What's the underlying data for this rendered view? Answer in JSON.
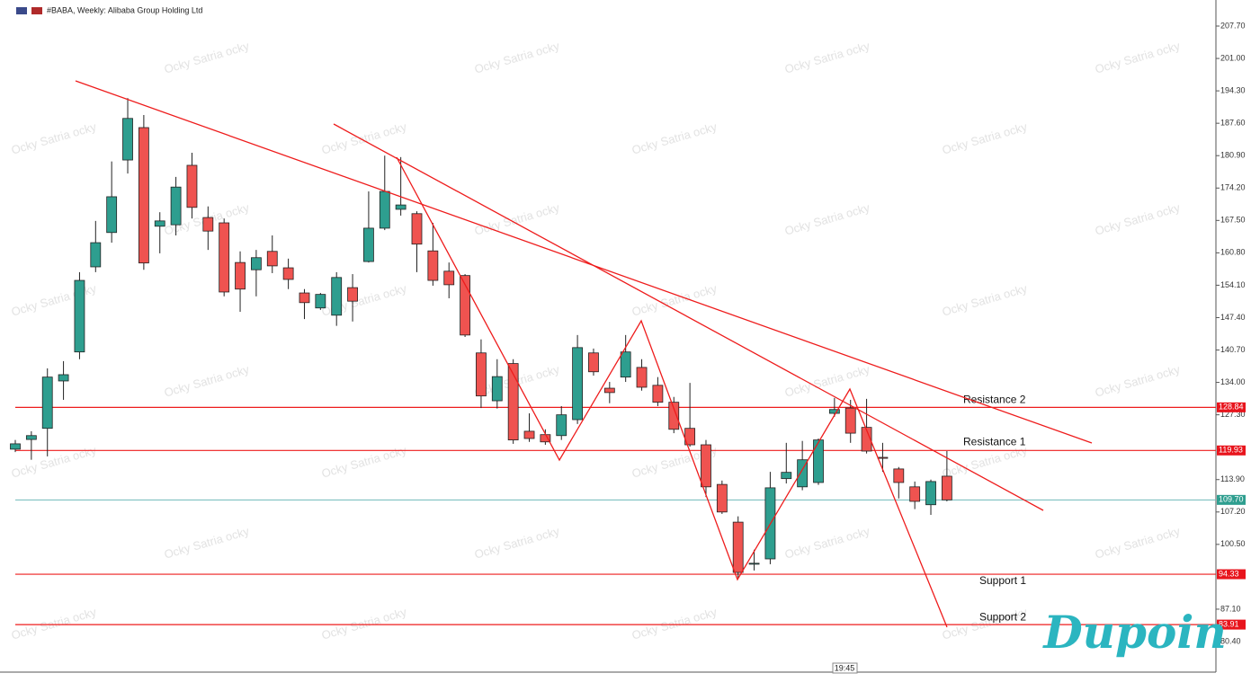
{
  "header": {
    "title": "#BABA, Weekly:  Alibaba Group Holding Ltd"
  },
  "watermark": "Ocky Satria ocky",
  "logo": "Dupoin",
  "time_label": "19:45",
  "chart_data": {
    "type": "candlestick",
    "up_color": "#2e9e8f",
    "down_color": "#ef5350",
    "ylim": [
      74.64,
      213.09
    ],
    "yticks": [
      {
        "value": 207.7,
        "label": "207.70"
      },
      {
        "value": 201,
        "label": "201.00"
      },
      {
        "value": 194.3,
        "label": "194.30"
      },
      {
        "value": 187.6,
        "label": "187.60"
      },
      {
        "value": 180.9,
        "label": "180.90"
      },
      {
        "value": 174.2,
        "label": "174.20"
      },
      {
        "value": 167.5,
        "label": "167.50"
      },
      {
        "value": 160.8,
        "label": "160.80"
      },
      {
        "value": 154.1,
        "label": "154.10"
      },
      {
        "value": 147.4,
        "label": "147.40"
      },
      {
        "value": 140.7,
        "label": "140.70"
      },
      {
        "value": 134,
        "label": "134.00"
      },
      {
        "value": 127.3,
        "label": "127.30"
      },
      {
        "value": 113.9,
        "label": "113.90"
      },
      {
        "value": 107.2,
        "label": "107.20"
      },
      {
        "value": 100.5,
        "label": "100.50"
      },
      {
        "value": 87.1,
        "label": "87.10"
      },
      {
        "value": 80.4,
        "label": "80.40"
      }
    ],
    "open": [
      120.19,
      122.2,
      124.5,
      134.3,
      140.3,
      157.9,
      165.0,
      180.0,
      186.7,
      166.3,
      166.6,
      178.9,
      168.1,
      167.0,
      158.8,
      157.3,
      161.1,
      157.7,
      152.5,
      149.4,
      147.9,
      153.6,
      159.0,
      165.9,
      169.8,
      168.9,
      161.2,
      157.0,
      156.1,
      140.1,
      130.2,
      137.9,
      123.9,
      123.2,
      123.0,
      126.3,
      140.1,
      132.8,
      135.1,
      137.1,
      133.4,
      129.9,
      124.5,
      121.1,
      112.9,
      105.1,
      96.4,
      97.5,
      114.1,
      112.4,
      113.3,
      127.6,
      128.7,
      124.7,
      118.5,
      116.1,
      112.4,
      108.7,
      114.6
    ],
    "high": [
      122.1,
      123.9,
      136.9,
      138.4,
      156.8,
      167.4,
      179.7,
      192.8,
      189.3,
      169.2,
      176.5,
      181.5,
      170.4,
      167.9,
      161.1,
      161.4,
      164.4,
      159.6,
      153.3,
      152.5,
      156.8,
      156.4,
      173.5,
      180.9,
      180.6,
      169.4,
      167.0,
      158.8,
      156.4,
      142.9,
      138.8,
      138.8,
      127.6,
      124.3,
      129.1,
      143.8,
      141.0,
      134.1,
      143.8,
      138.8,
      135.1,
      131.0,
      133.9,
      122.1,
      113.7,
      106.3,
      99.4,
      115.5,
      121.5,
      121.9,
      122.4,
      130.8,
      130.4,
      130.6,
      121.5,
      116.5,
      113.5,
      113.9,
      119.8
    ],
    "low": [
      119.6,
      118.0,
      118.7,
      130.4,
      138.8,
      156.8,
      162.9,
      177.2,
      157.3,
      160.7,
      164.4,
      167.9,
      161.4,
      151.8,
      148.6,
      151.8,
      156.6,
      153.3,
      147.1,
      149.0,
      145.7,
      146.6,
      158.8,
      165.5,
      168.5,
      156.8,
      154.0,
      151.4,
      143.4,
      128.7,
      128.6,
      121.3,
      121.7,
      121.1,
      122.1,
      125.4,
      135.4,
      129.7,
      134.1,
      132.3,
      129.1,
      123.5,
      120.7,
      110.3,
      106.8,
      93.6,
      95.1,
      96.4,
      113.1,
      111.7,
      112.8,
      126.9,
      121.5,
      119.3,
      115.5,
      110.0,
      107.8,
      106.6,
      109.4
    ],
    "close": [
      121.3,
      123.0,
      135.1,
      135.6,
      155.1,
      162.9,
      172.4,
      188.6,
      158.7,
      167.4,
      174.4,
      170.2,
      165.3,
      152.7,
      153.3,
      159.8,
      158.1,
      155.3,
      150.5,
      152.2,
      155.7,
      150.8,
      165.9,
      173.5,
      170.7,
      162.6,
      155.1,
      154.2,
      143.8,
      131.2,
      135.2,
      122.1,
      122.4,
      121.7,
      127.3,
      141.2,
      136.2,
      131.9,
      140.3,
      133.0,
      129.9,
      124.3,
      121.1,
      112.4,
      107.2,
      94.7,
      96.6,
      112.2,
      115.4,
      118.0,
      122.1,
      128.4,
      123.5,
      119.8,
      118.3,
      113.3,
      109.4,
      113.5,
      109.7
    ],
    "levels": [
      {
        "name": "Resistance 2",
        "value": 128.84
      },
      {
        "name": "Resistance 1",
        "value": 119.93
      },
      {
        "name": "Support 1",
        "value": 94.33
      },
      {
        "name": "Support 2",
        "value": 83.91
      }
    ],
    "last_price": {
      "value": 109.7,
      "label": "109.70"
    }
  }
}
